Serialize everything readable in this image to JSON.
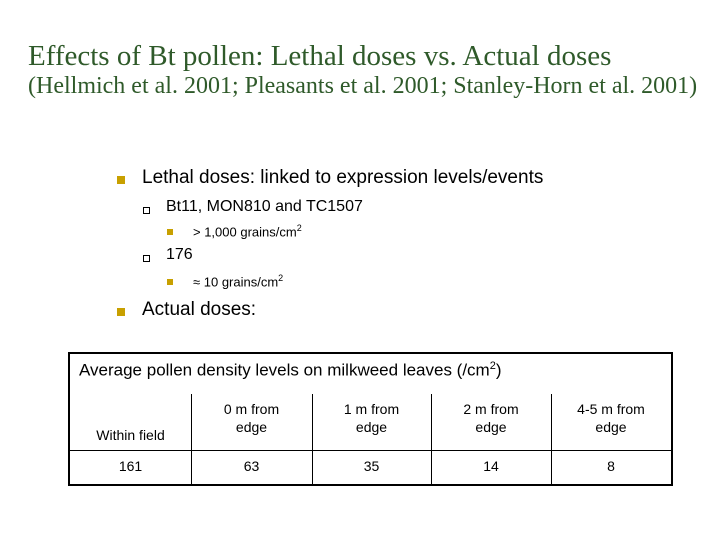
{
  "title": {
    "line": "Effects of Bt pollen: Lethal doses vs. Actual doses",
    "citation": "(Hellmich et al. 2001; Pleasants et al. 2001; Stanley-Horn et al. 2001)"
  },
  "bullets": [
    {
      "text": "Lethal doses: linked to expression levels/events",
      "children": [
        {
          "text": "Bt11, MON810 and TC1507",
          "children": [
            {
              "before": "> 1,000 grains/cm",
              "sup": "2"
            }
          ]
        },
        {
          "text": "176",
          "children": [
            {
              "before": "≈ 10 grains/cm",
              "sup": "2"
            }
          ]
        }
      ]
    },
    {
      "text": "Actual doses:"
    }
  ],
  "table": {
    "caption": {
      "before": "Average pollen density levels on milkweed leaves (/cm",
      "sup": "2",
      "after": ")"
    },
    "header": [
      "Within field",
      "0 m from edge",
      "1 m from edge",
      "2 m from edge",
      "4-5 m from edge"
    ],
    "rows": [
      [
        161,
        63,
        35,
        14,
        8
      ]
    ]
  }
}
